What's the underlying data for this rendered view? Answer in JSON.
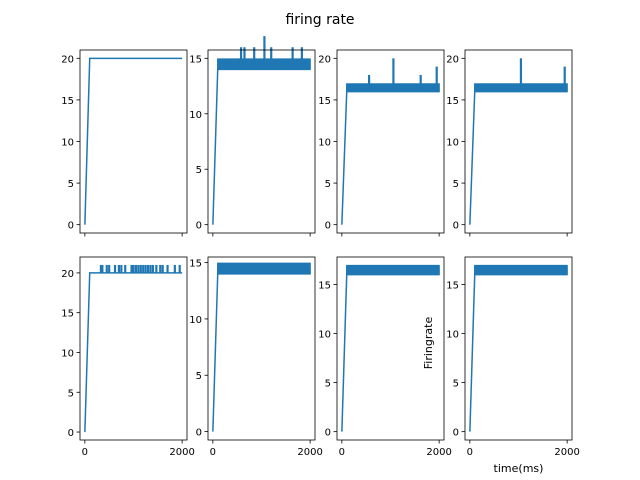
{
  "figure": {
    "title": "firing rate",
    "line_color": "#1f77b4"
  },
  "chart_data": [
    {
      "type": "line",
      "panel": "row1-col1",
      "x_ticks": [
        0,
        2000
      ],
      "x_tick_labels_shown": false,
      "y_ticks": [
        0,
        5,
        10,
        15,
        20
      ],
      "xlim": [
        -100,
        2100
      ],
      "ylim": [
        -1,
        21
      ],
      "xlabel": "",
      "ylabel": "",
      "plateau": 20,
      "rise_start_x": 0,
      "rise_end_x": 100,
      "spike_baseline": 20,
      "spike_band": [
        20,
        20
      ],
      "band_density": 0,
      "spikes": []
    },
    {
      "type": "line",
      "panel": "row1-col2",
      "x_ticks": [
        0,
        2000
      ],
      "x_tick_labels_shown": false,
      "y_ticks": [
        0,
        5,
        10,
        15
      ],
      "xlim": [
        -100,
        2100
      ],
      "ylim": [
        -0.75,
        15.75
      ],
      "xlabel": "",
      "ylabel": "",
      "plateau": 14,
      "rise_start_x": 0,
      "rise_end_x": 100,
      "spike_baseline": 14,
      "spike_band": [
        14,
        15
      ],
      "band_density": 0.9,
      "spikes": [
        [
          580,
          16
        ],
        [
          650,
          16
        ],
        [
          850,
          16
        ],
        [
          1060,
          17
        ],
        [
          1200,
          16
        ],
        [
          1640,
          16
        ],
        [
          1830,
          16
        ]
      ]
    },
    {
      "type": "line",
      "panel": "row1-col3",
      "x_ticks": [
        0,
        2000
      ],
      "x_tick_labels_shown": false,
      "y_ticks": [
        0,
        5,
        10,
        15,
        20
      ],
      "xlim": [
        -100,
        2100
      ],
      "ylim": [
        -1,
        21
      ],
      "xlabel": "",
      "ylabel": "",
      "plateau": 16,
      "rise_start_x": 0,
      "rise_end_x": 100,
      "spike_baseline": 16,
      "spike_band": [
        16,
        17
      ],
      "band_density": 0.9,
      "spikes": [
        [
          560,
          18
        ],
        [
          1060,
          20
        ],
        [
          1620,
          18
        ],
        [
          1950,
          19
        ]
      ]
    },
    {
      "type": "line",
      "panel": "row1-col4",
      "x_ticks": [
        0,
        2000
      ],
      "x_tick_labels_shown": false,
      "y_ticks": [
        0,
        5,
        10,
        15,
        20
      ],
      "xlim": [
        -100,
        2100
      ],
      "ylim": [
        -1,
        21
      ],
      "xlabel": "",
      "ylabel": "",
      "plateau": 16,
      "rise_start_x": 0,
      "rise_end_x": 100,
      "spike_baseline": 16,
      "spike_band": [
        16,
        17
      ],
      "band_density": 0.9,
      "spikes": [
        [
          1050,
          20
        ],
        [
          1950,
          19
        ]
      ]
    },
    {
      "type": "line",
      "panel": "row2-col1",
      "x_ticks": [
        0,
        2000
      ],
      "x_tick_labels_shown": true,
      "y_ticks": [
        0,
        5,
        10,
        15,
        20
      ],
      "xlim": [
        -100,
        2100
      ],
      "ylim": [
        -1,
        22
      ],
      "xlabel": "",
      "ylabel": "",
      "plateau": 20,
      "rise_start_x": 0,
      "rise_end_x": 100,
      "spike_baseline": 20,
      "spike_band": [
        20,
        20
      ],
      "band_density": 0,
      "spikes": [
        [
          330,
          21
        ],
        [
          360,
          21
        ],
        [
          450,
          21
        ],
        [
          500,
          21
        ],
        [
          620,
          21
        ],
        [
          700,
          21
        ],
        [
          750,
          21
        ],
        [
          830,
          21
        ],
        [
          960,
          21
        ],
        [
          1000,
          21
        ],
        [
          1050,
          21
        ],
        [
          1100,
          21
        ],
        [
          1150,
          21
        ],
        [
          1200,
          21
        ],
        [
          1250,
          21
        ],
        [
          1300,
          21
        ],
        [
          1350,
          21
        ],
        [
          1400,
          21
        ],
        [
          1470,
          21
        ],
        [
          1550,
          21
        ],
        [
          1600,
          21
        ],
        [
          1700,
          21
        ],
        [
          1850,
          21
        ],
        [
          1950,
          21
        ]
      ]
    },
    {
      "type": "line",
      "panel": "row2-col2",
      "x_ticks": [
        0,
        2000
      ],
      "x_tick_labels_shown": true,
      "y_ticks": [
        0,
        5,
        10,
        15
      ],
      "xlim": [
        -100,
        2100
      ],
      "ylim": [
        -0.75,
        15.5
      ],
      "xlabel": "",
      "ylabel": "",
      "plateau": 14,
      "rise_start_x": 0,
      "rise_end_x": 100,
      "spike_baseline": 14,
      "spike_band": [
        14,
        15
      ],
      "band_density": 1,
      "spikes": []
    },
    {
      "type": "line",
      "panel": "row2-col3",
      "x_ticks": [
        0,
        2000
      ],
      "x_tick_labels_shown": true,
      "y_ticks": [
        0,
        5,
        10,
        15
      ],
      "xlim": [
        -100,
        2100
      ],
      "ylim": [
        -0.85,
        17.8
      ],
      "xlabel": "",
      "ylabel": "",
      "plateau": 16,
      "rise_start_x": 0,
      "rise_end_x": 100,
      "spike_baseline": 16,
      "spike_band": [
        16,
        17
      ],
      "band_density": 1,
      "spikes": []
    },
    {
      "type": "line",
      "panel": "row2-col4",
      "x_ticks": [
        0,
        2000
      ],
      "x_tick_labels_shown": true,
      "y_ticks": [
        0,
        5,
        10,
        15
      ],
      "xlim": [
        -100,
        2100
      ],
      "ylim": [
        -0.85,
        17.8
      ],
      "xlabel": "time(ms)",
      "ylabel": "Firingrate",
      "plateau": 16,
      "rise_start_x": 0,
      "rise_end_x": 100,
      "spike_baseline": 16,
      "spike_band": [
        16,
        17
      ],
      "band_density": 1,
      "spikes": []
    }
  ]
}
